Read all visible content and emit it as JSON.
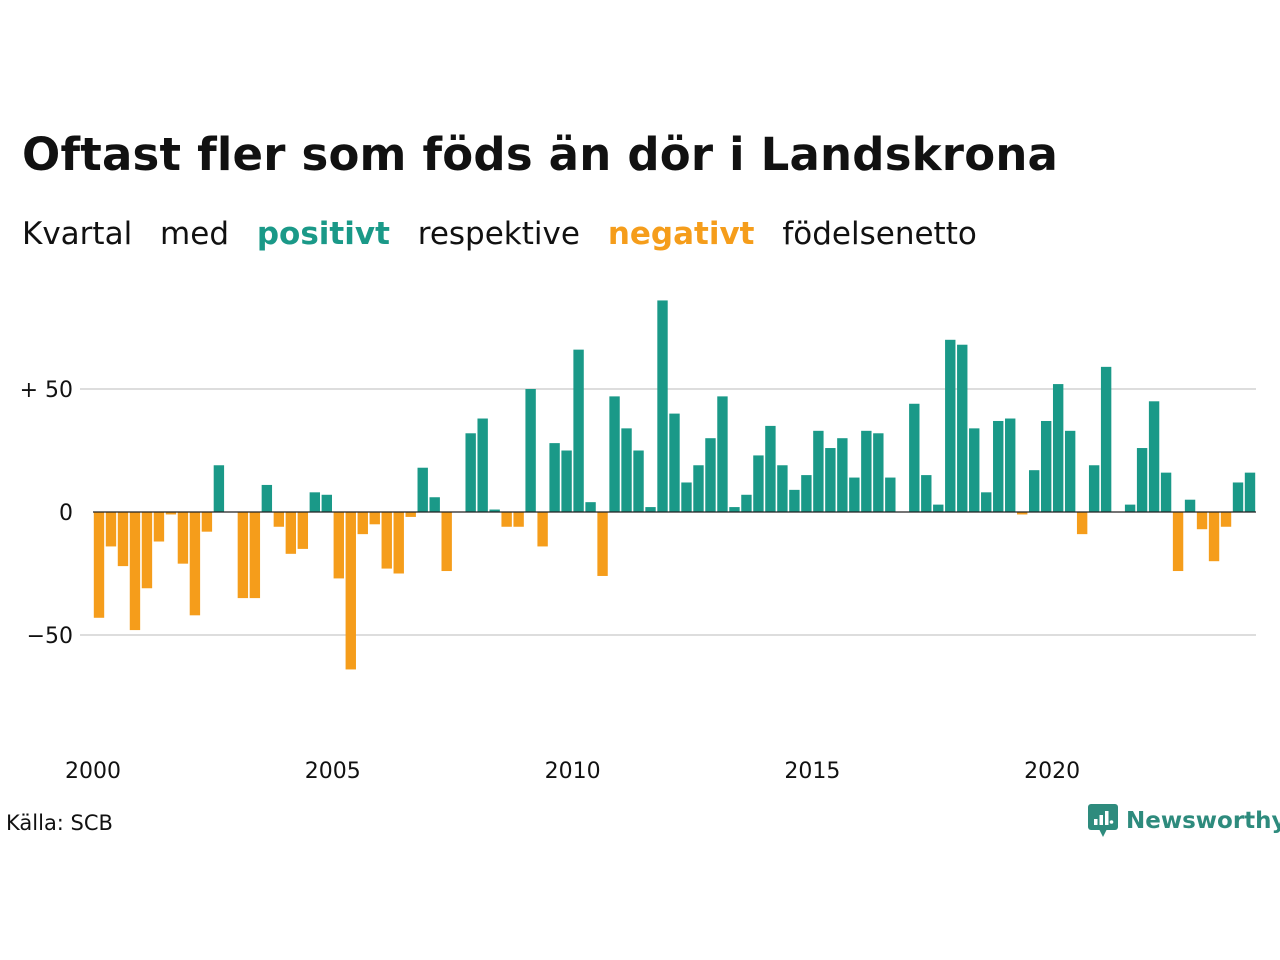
{
  "title": "Oftast fler som föds än dör i Landskrona",
  "subtitle": {
    "w1": "Kvartal",
    "w2": "med",
    "positive": "positivt",
    "w4": "respektive",
    "negative": "negativt",
    "w6": "födelsenetto"
  },
  "colors": {
    "positive": "#1a9988",
    "negative": "#f59d1b",
    "grid": "#dddddd",
    "brand": "#2e8b7d"
  },
  "source": "Källa: SCB",
  "brand": {
    "name": "Newsworthy",
    "icon": "newsworthy-logo-icon"
  },
  "chart_data": {
    "type": "bar",
    "title": "Oftast fler som föds än dör i Landskrona",
    "xlabel": "",
    "ylabel": "",
    "ylim": [
      -80,
      90
    ],
    "yticks": [
      {
        "value": 50,
        "label": "+ 50"
      },
      {
        "value": 0,
        "label": "0"
      },
      {
        "value": -50,
        "label": "−50"
      }
    ],
    "x_start": "2000 Q1",
    "xticks": [
      {
        "label": "2000",
        "index": 0
      },
      {
        "label": "2005",
        "index": 20
      },
      {
        "label": "2010",
        "index": 40
      },
      {
        "label": "2015",
        "index": 60
      },
      {
        "label": "2020",
        "index": 80
      }
    ],
    "values": [
      -43,
      -14,
      -22,
      -48,
      -31,
      -12,
      -1,
      -21,
      -42,
      -8,
      19,
      0,
      -35,
      -35,
      11,
      -6,
      -17,
      -15,
      8,
      7,
      -27,
      -64,
      -9,
      -5,
      -23,
      -25,
      -2,
      18,
      6,
      -24,
      0,
      32,
      38,
      1,
      -6,
      -6,
      50,
      -14,
      28,
      25,
      66,
      4,
      -26,
      47,
      34,
      25,
      2,
      86,
      40,
      12,
      19,
      30,
      47,
      2,
      7,
      23,
      35,
      19,
      9,
      15,
      33,
      26,
      30,
      14,
      33,
      32,
      14,
      0,
      44,
      15,
      3,
      70,
      68,
      34,
      8,
      37,
      38,
      -1,
      17,
      37,
      52,
      33,
      -9,
      19,
      59,
      0,
      3,
      26,
      45,
      16,
      -24,
      5,
      -7,
      -20,
      -6,
      12,
      16
    ],
    "grid": true,
    "legend": "in subtitle"
  }
}
